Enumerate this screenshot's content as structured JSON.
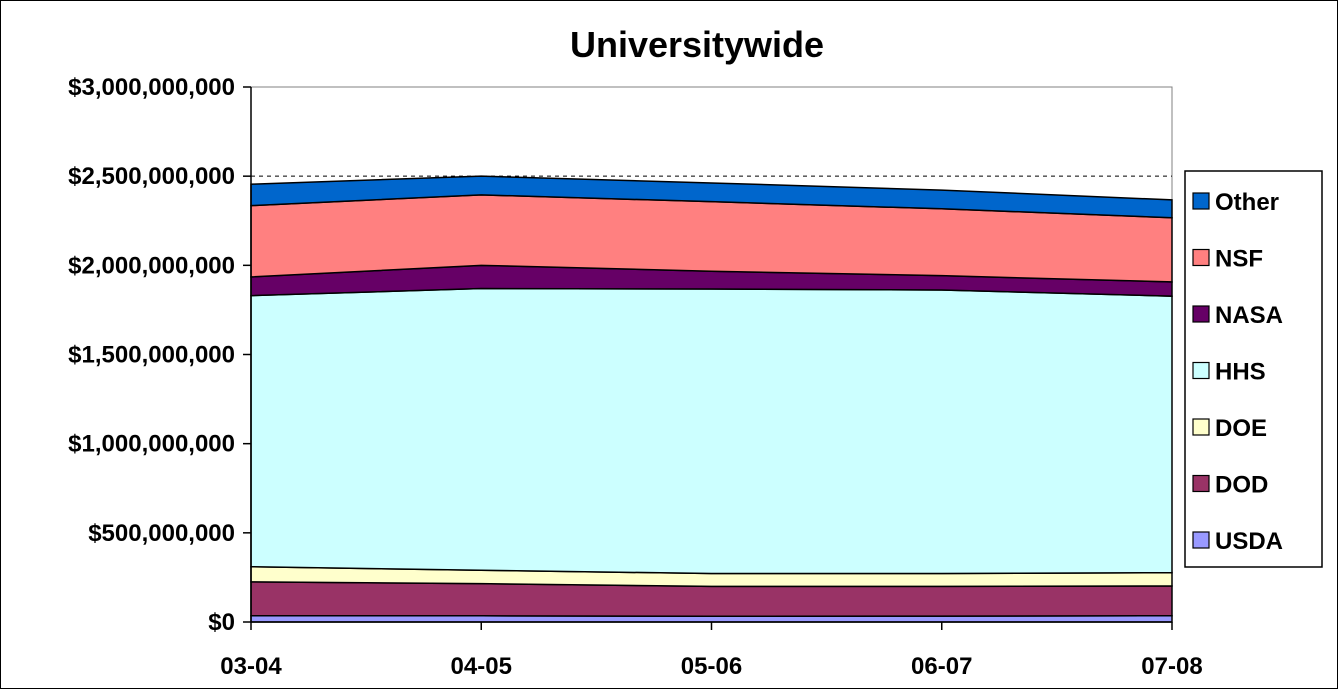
{
  "chart_data": {
    "type": "area",
    "stacked": true,
    "title": "Universitywide",
    "xlabel": "",
    "ylabel": "",
    "categories": [
      "03-04",
      "04-05",
      "05-06",
      "06-07",
      "07-08"
    ],
    "ylim": [
      0,
      3000000000
    ],
    "yticks": [
      0,
      500000000,
      1000000000,
      1500000000,
      2000000000,
      2500000000,
      3000000000
    ],
    "ytick_labels": [
      "$0",
      "$500,000,000",
      "$1,000,000,000",
      "$1,500,000,000",
      "$2,000,000,000",
      "$2,500,000,000",
      "$3,000,000,000"
    ],
    "gridlines": [
      2500000000
    ],
    "legend_position": "right",
    "series": [
      {
        "name": "USDA",
        "color": "#9999ff",
        "values": [
          35000000,
          35000000,
          32000000,
          33000000,
          35000000
        ]
      },
      {
        "name": "DOD",
        "color": "#993366",
        "values": [
          190000000,
          180000000,
          168000000,
          167000000,
          167000000
        ]
      },
      {
        "name": "DOE",
        "color": "#ffffcc",
        "values": [
          85000000,
          75000000,
          72000000,
          72000000,
          75000000
        ]
      },
      {
        "name": "HHS",
        "color": "#ccffff",
        "values": [
          1520000000,
          1580000000,
          1595000000,
          1590000000,
          1550000000
        ]
      },
      {
        "name": "NASA",
        "color": "#660066",
        "values": [
          105000000,
          130000000,
          100000000,
          80000000,
          80000000
        ]
      },
      {
        "name": "NSF",
        "color": "#ff8080",
        "values": [
          400000000,
          395000000,
          390000000,
          375000000,
          360000000
        ]
      },
      {
        "name": "Other",
        "color": "#0066cc",
        "values": [
          120000000,
          105000000,
          105000000,
          105000000,
          100000000
        ]
      }
    ]
  }
}
